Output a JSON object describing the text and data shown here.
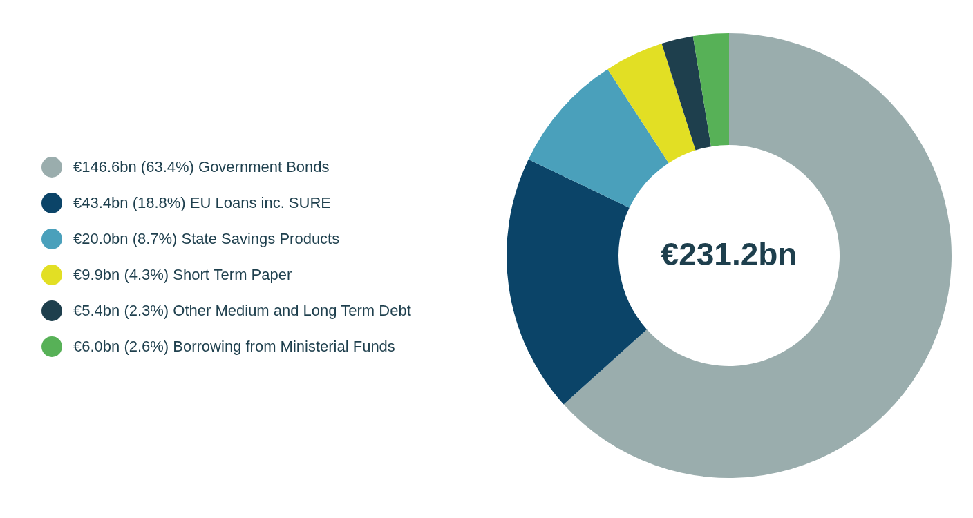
{
  "chart_data": {
    "type": "donut",
    "categories": [
      "Government Bonds",
      "EU Loans inc. SURE",
      "State Savings Products",
      "Short Term Paper",
      "Other Medium and Long Term Debt",
      "Borrowing from Ministerial Funds"
    ],
    "values": [
      63.4,
      18.8,
      8.7,
      4.3,
      2.3,
      2.6
    ],
    "colors": [
      "#9aadad",
      "#0b4468",
      "#4aa0bb",
      "#e2df24",
      "#1e3f4d",
      "#57b157"
    ],
    "value_labels": [
      "€146.6bn (63.4%)",
      "€43.4bn (18.8%)",
      "€20.0bn (8.7%)",
      "€9.9bn (4.3%)",
      "€5.4bn (2.3%)",
      "€6.0bn (2.6%)"
    ],
    "annotations": [
      "€231.2bn"
    ],
    "legend": "left"
  }
}
